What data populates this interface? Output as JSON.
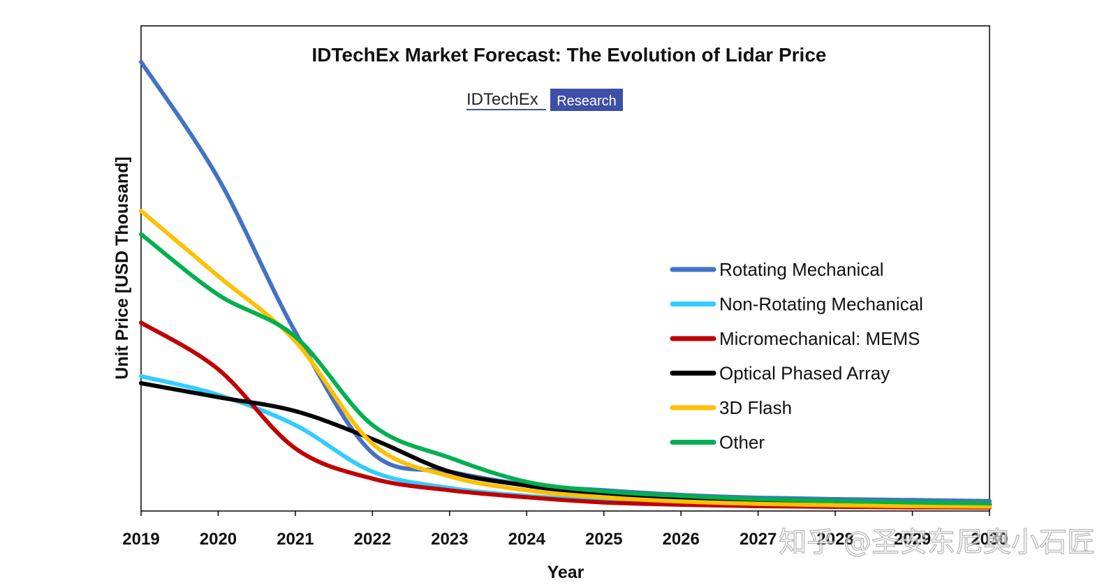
{
  "chart_data": {
    "type": "line",
    "title": "IDTechEx Market Forecast: The Evolution of Lidar Price",
    "logo": {
      "main": "IDTechEx",
      "badge": "Research"
    },
    "xlabel": "Year",
    "ylabel": "Unit Price [USD Thousand]",
    "x": [
      2019,
      2020,
      2021,
      2022,
      2023,
      2024,
      2025,
      2026,
      2027,
      2028,
      2029,
      2030
    ],
    "x_ticks": [
      "2019",
      "2020",
      "2021",
      "2022",
      "2023",
      "2024",
      "2025",
      "2026",
      "2027",
      "2028",
      "2029",
      "2030"
    ],
    "ylim": [
      0,
      100
    ],
    "yticks_labeled": false,
    "grid": false,
    "legend": "right",
    "series": [
      {
        "name": "Rotating Mechanical",
        "color": "#4472C4",
        "values": [
          96,
          71,
          38,
          12,
          8,
          5.2,
          4,
          3,
          2.4,
          2.1,
          1.9,
          1.7
        ]
      },
      {
        "name": "Non-Rotating Mechanical",
        "color": "#33CCFF",
        "values": [
          28.5,
          24.5,
          18,
          8,
          4.5,
          2.8,
          1.8,
          1.2,
          0.9,
          0.7,
          0.55,
          0.45
        ]
      },
      {
        "name": "Micromechanical: MEMS",
        "color": "#C00000",
        "values": [
          40,
          30,
          13,
          6.5,
          4,
          2.5,
          1.4,
          0.9,
          0.6,
          0.45,
          0.35,
          0.3
        ]
      },
      {
        "name": "Optical Phased Array",
        "color": "#000000",
        "values": [
          27,
          24,
          21,
          15,
          8,
          5,
          3,
          2.2,
          1.7,
          1.4,
          1.1,
          0.9
        ]
      },
      {
        "name": "3D Flash",
        "color": "#FFC000",
        "values": [
          64,
          50,
          36,
          14,
          7,
          4,
          2.5,
          1.6,
          1.1,
          0.8,
          0.6,
          0.5
        ]
      },
      {
        "name": "Other",
        "color": "#00B050",
        "values": [
          59,
          46,
          37,
          18,
          11,
          5.8,
          3.8,
          2.8,
          2.1,
          1.7,
          1.4,
          1.2
        ]
      }
    ]
  },
  "watermark": "知乎 @圣安东尼奥小石匠"
}
